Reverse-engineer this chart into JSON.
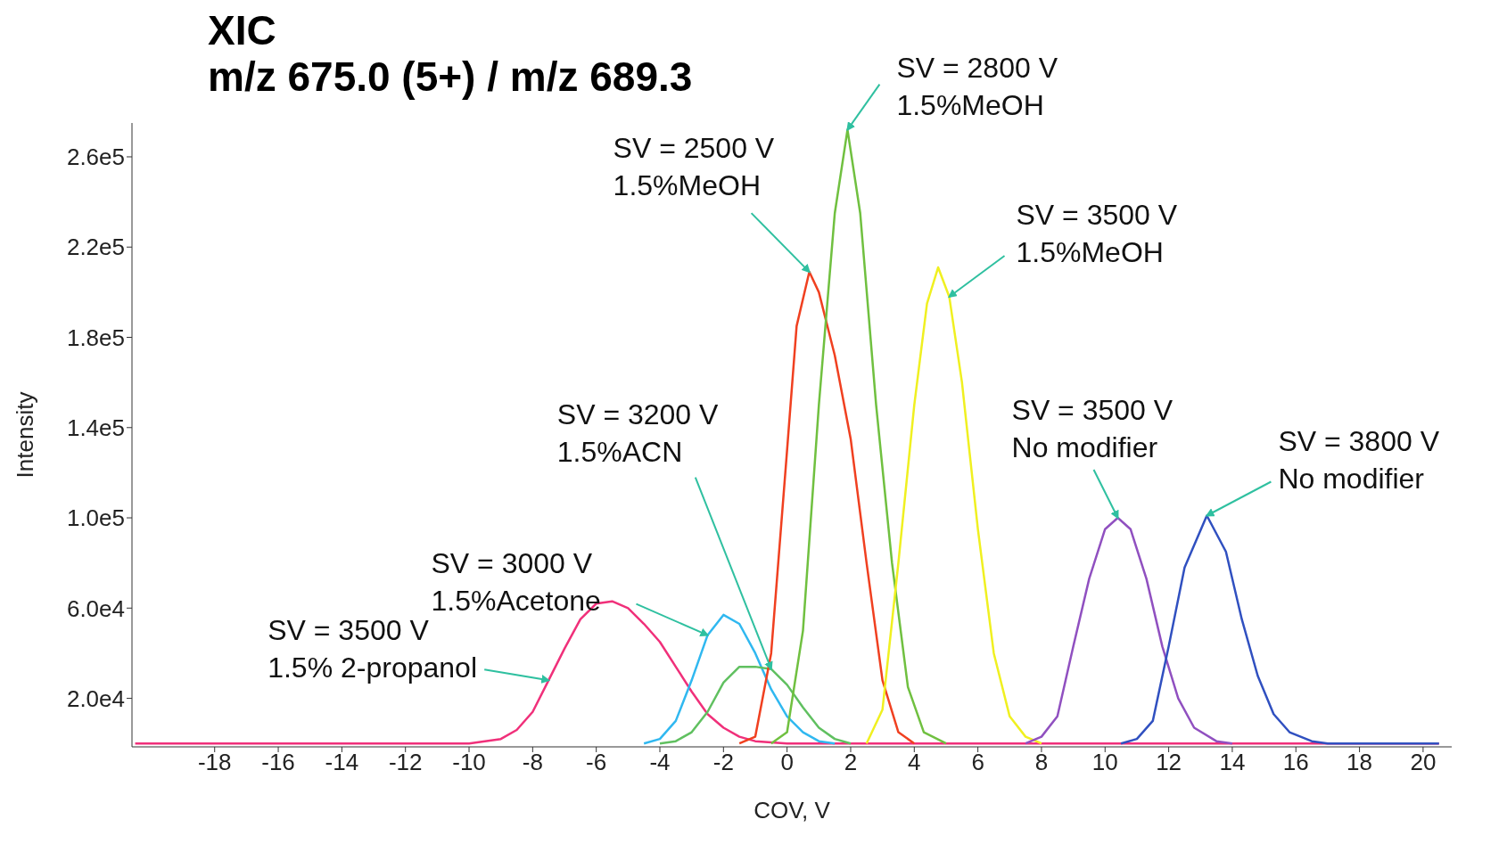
{
  "chart_data": {
    "type": "line",
    "title": "XIC",
    "subtitle": "m/z 675.0 (5+) / m/z 689.3",
    "xlabel": "COV, V",
    "ylabel": "Intensity",
    "xlim": [
      -20.6,
      20.9
    ],
    "xticks": [
      -18,
      -16,
      -14,
      -12,
      -10,
      -8,
      -6,
      -4,
      -2,
      0,
      2,
      4,
      6,
      8,
      10,
      12,
      14,
      16,
      18,
      20
    ],
    "ylim": [
      -1500,
      275000
    ],
    "yticks": [
      {
        "value": 20000,
        "label": "2.0e4"
      },
      {
        "value": 60000,
        "label": "6.0e4"
      },
      {
        "value": 100000,
        "label": "1.0e5"
      },
      {
        "value": 140000,
        "label": "1.4e5"
      },
      {
        "value": 180000,
        "label": "1.8e5"
      },
      {
        "value": 220000,
        "label": "2.2e5"
      },
      {
        "value": 260000,
        "label": "2.6e5"
      }
    ],
    "marker": "none",
    "line_style": "solid",
    "series": [
      {
        "color": "#f0307a",
        "x": [
          -20.5,
          -10,
          -9,
          -8.5,
          -8,
          -7.5,
          -7,
          -6.5,
          -6,
          -5.5,
          -5,
          -4.5,
          -4,
          -3.5,
          -3,
          -2.5,
          -2,
          -1.5,
          -1,
          0,
          20.5
        ],
        "values": [
          0,
          0,
          2000,
          6000,
          14000,
          28000,
          42000,
          55000,
          62000,
          63000,
          60000,
          53000,
          45000,
          34000,
          23000,
          13000,
          7000,
          3000,
          1000,
          0,
          0
        ]
      },
      {
        "color": "#30b8f0",
        "x": [
          -4.5,
          -4,
          -3.5,
          -3,
          -2.5,
          -2,
          -1.5,
          -1,
          -0.5,
          0,
          0.5,
          1,
          1.5
        ],
        "values": [
          0,
          2000,
          10000,
          28000,
          48000,
          57000,
          53000,
          40000,
          24000,
          12000,
          5000,
          1000,
          0
        ]
      },
      {
        "color": "#60c060",
        "x": [
          -4,
          -3.5,
          -3,
          -2.5,
          -2,
          -1.5,
          -1,
          -0.5,
          0,
          0.5,
          1,
          1.5,
          2
        ],
        "values": [
          0,
          1000,
          5000,
          14000,
          27000,
          34000,
          34000,
          33000,
          26000,
          16000,
          7000,
          2000,
          0
        ]
      },
      {
        "color": "#f04020",
        "x": [
          -1.5,
          -1,
          -0.5,
          0,
          0.3,
          0.7,
          1,
          1.5,
          2,
          2.5,
          3,
          3.5,
          4
        ],
        "values": [
          0,
          3000,
          40000,
          130000,
          185000,
          209000,
          200000,
          172000,
          135000,
          80000,
          28000,
          5000,
          0
        ]
      },
      {
        "color": "#70c040",
        "x": [
          -0.5,
          0,
          0.5,
          1,
          1.5,
          1.9,
          2.3,
          2.8,
          3.3,
          3.8,
          4.3,
          5
        ],
        "values": [
          0,
          5000,
          50000,
          150000,
          235000,
          272000,
          235000,
          150000,
          80000,
          25000,
          5000,
          0
        ]
      },
      {
        "color": "#f0f020",
        "x": [
          2.5,
          3,
          3.5,
          4,
          4.4,
          4.75,
          5.1,
          5.5,
          6,
          6.5,
          7,
          7.5,
          8
        ],
        "values": [
          0,
          15000,
          80000,
          150000,
          195000,
          211000,
          198000,
          160000,
          95000,
          40000,
          12000,
          3000,
          0
        ]
      },
      {
        "color": "#9050c0",
        "x": [
          7.5,
          8,
          8.5,
          9,
          9.5,
          10,
          10.4,
          10.8,
          11.3,
          11.8,
          12.3,
          12.8,
          13.5,
          14
        ],
        "values": [
          0,
          3000,
          12000,
          43000,
          73000,
          95000,
          100000,
          95000,
          73000,
          43000,
          20000,
          7000,
          1000,
          0
        ]
      },
      {
        "color": "#3050c0",
        "x": [
          10.5,
          11,
          11.5,
          12,
          12.5,
          13.2,
          13.8,
          14.3,
          14.8,
          15.3,
          15.8,
          16.5,
          17,
          20.5
        ],
        "values": [
          0,
          2000,
          10000,
          43000,
          78000,
          101000,
          85000,
          55000,
          30000,
          13000,
          5000,
          1000,
          0,
          0
        ]
      }
    ],
    "annotations": [
      {
        "text": "SV = 3500 V\n1.5% 2-propanol",
        "x": -7.5,
        "y": 28000
      },
      {
        "text": "SV = 3000 V\n1.5%Acetone",
        "x": -2.5,
        "y": 48000
      },
      {
        "text": "SV = 3200 V\n1.5%ACN",
        "x": -0.5,
        "y": 33000
      },
      {
        "text": "SV = 2500 V\n1.5%MeOH",
        "x": 0.7,
        "y": 209000
      },
      {
        "text": "SV = 2800 V\n1.5%MeOH",
        "x": 1.9,
        "y": 272000
      },
      {
        "text": "SV = 3500 V\n1.5%MeOH",
        "x": 5.1,
        "y": 198000
      },
      {
        "text": "SV = 3500 V\nNo modifier",
        "x": 10.4,
        "y": 100000
      },
      {
        "text": "SV = 3800 V\nNo modifier",
        "x": 13.2,
        "y": 101000
      }
    ]
  }
}
